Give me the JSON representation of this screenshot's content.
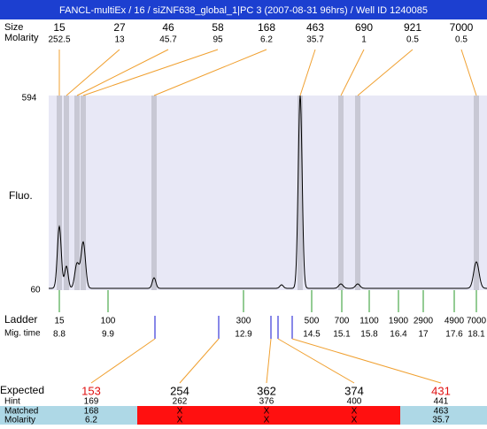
{
  "header": {
    "title": "FANCL-multiEx / 16 / siZNF638_global_1|PC 3 (2007-08-31 96hrs) / Well ID 1240085"
  },
  "peaks": {
    "size_label": "Size",
    "molarity_label": "Molarity",
    "sizes": [
      15,
      27,
      46,
      58,
      168,
      463,
      690,
      921,
      7000
    ],
    "molarities": [
      252.5,
      13,
      45.7,
      95,
      6.2,
      35.7,
      1,
      0.5,
      0.5
    ]
  },
  "plot": {
    "y_label": "Fluo.",
    "y_top": 594,
    "y_bottom": 60
  },
  "ladder": {
    "label": "Ladder",
    "mig_label": "Mig. time",
    "sizes": [
      15,
      100,
      300,
      500,
      700,
      1100,
      1900,
      2900,
      4900,
      7000
    ],
    "mig_times": [
      8.8,
      9.9,
      12.9,
      14.5,
      15.1,
      15.8,
      16.4,
      17,
      17.6,
      18.1
    ]
  },
  "expected": {
    "label": "Expected",
    "hint_label": "Hint",
    "matched_label": "Matched",
    "molarity_label": "Molarity",
    "values": [
      153,
      254,
      362,
      374,
      431
    ],
    "highlight": [
      true,
      false,
      false,
      false,
      true
    ],
    "hints": [
      169,
      262,
      376,
      400,
      441
    ],
    "matched": [
      168,
      "X",
      "X",
      "X",
      463
    ],
    "molarities": [
      6.2,
      "X",
      "X",
      "X",
      35.7
    ]
  }
}
